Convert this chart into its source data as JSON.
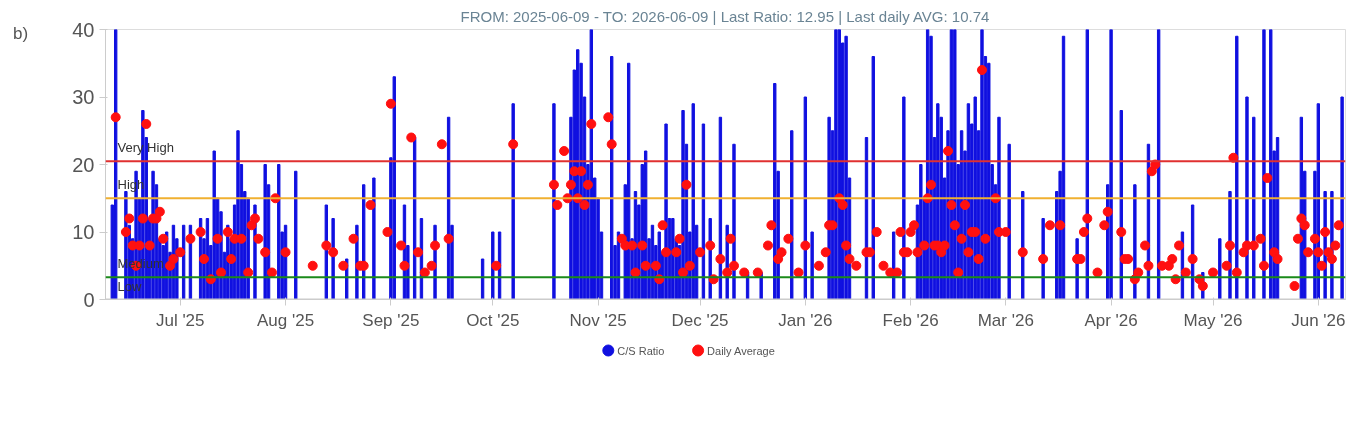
{
  "chart_data": {
    "type": "bar",
    "title": "FROM: 2025-06-09 - TO: 2026-06-09 | Last Ratio: 12.95 | Last daily AVG: 10.74",
    "annotations": [
      "b)"
    ],
    "xlim": [
      "2025-06-09",
      "2026-06-09"
    ],
    "xticks": [
      {
        "value": "2025-07-01",
        "label": "Jul '25"
      },
      {
        "value": "2025-08-01",
        "label": "Aug '25"
      },
      {
        "value": "2025-09-01",
        "label": "Sep '25"
      },
      {
        "value": "2025-10-01",
        "label": "Oct '25"
      },
      {
        "value": "2025-11-01",
        "label": "Nov '25"
      },
      {
        "value": "2025-12-01",
        "label": "Dec '25"
      },
      {
        "value": "2026-01-01",
        "label": "Jan '26"
      },
      {
        "value": "2026-02-01",
        "label": "Feb '26"
      },
      {
        "value": "2026-03-01",
        "label": "Mar '26"
      },
      {
        "value": "2026-04-01",
        "label": "Apr '26"
      },
      {
        "value": "2026-05-01",
        "label": "May '26"
      },
      {
        "value": "2026-06-01",
        "label": "Jun '26"
      }
    ],
    "ylim": [
      0,
      40
    ],
    "yticks": [
      0,
      10,
      20,
      30,
      40
    ],
    "grid": false,
    "legend": "bottom",
    "ref_lines": [
      {
        "axis": "y",
        "value": 20.5,
        "label": "Very High",
        "color": "#e03030"
      },
      {
        "axis": "y",
        "value": 15,
        "label": "High",
        "color": "#f0b030"
      },
      {
        "axis": "y",
        "value": 3.3,
        "label": "Medium",
        "color": "#1a8a1a"
      },
      {
        "axis": "y",
        "value": 0,
        "label": "Low",
        "color": "#cccccc"
      }
    ],
    "series": [
      {
        "name": "C/S Ratio",
        "color": "#1010e0",
        "x": [
          "2025-06-11",
          "2025-06-12",
          "2025-06-15",
          "2025-06-16",
          "2025-06-17",
          "2025-06-18",
          "2025-06-19",
          "2025-06-20",
          "2025-06-21",
          "2025-06-22",
          "2025-06-23",
          "2025-06-24",
          "2025-06-25",
          "2025-06-26",
          "2025-06-27",
          "2025-06-28",
          "2025-06-29",
          "2025-06-30",
          "2025-07-02",
          "2025-07-04",
          "2025-07-07",
          "2025-07-08",
          "2025-07-09",
          "2025-07-10",
          "2025-07-11",
          "2025-07-12",
          "2025-07-13",
          "2025-07-14",
          "2025-07-15",
          "2025-07-16",
          "2025-07-17",
          "2025-07-18",
          "2025-07-19",
          "2025-07-20",
          "2025-07-21",
          "2025-07-23",
          "2025-07-26",
          "2025-07-27",
          "2025-07-30",
          "2025-07-31",
          "2025-08-01",
          "2025-08-04",
          "2025-08-13",
          "2025-08-15",
          "2025-08-19",
          "2025-08-22",
          "2025-08-24",
          "2025-08-27",
          "2025-09-01",
          "2025-09-02",
          "2025-09-05",
          "2025-09-06",
          "2025-09-08",
          "2025-09-10",
          "2025-09-14",
          "2025-09-18",
          "2025-09-19",
          "2025-09-28",
          "2025-10-01",
          "2025-10-03",
          "2025-10-07",
          "2025-10-19",
          "2025-10-24",
          "2025-10-25",
          "2025-10-26",
          "2025-10-27",
          "2025-10-28",
          "2025-10-29",
          "2025-10-30",
          "2025-10-31",
          "2025-11-01",
          "2025-11-02",
          "2025-11-05",
          "2025-11-06",
          "2025-11-07",
          "2025-11-09",
          "2025-11-10",
          "2025-11-11",
          "2025-11-12",
          "2025-11-13",
          "2025-11-14",
          "2025-11-15",
          "2025-11-16",
          "2025-11-17",
          "2025-11-18",
          "2025-11-19",
          "2025-11-20",
          "2025-11-21",
          "2025-11-22",
          "2025-11-23",
          "2025-11-24",
          "2025-11-25",
          "2025-11-26",
          "2025-11-27",
          "2025-11-28",
          "2025-11-29",
          "2025-11-30",
          "2025-12-02",
          "2025-12-04",
          "2025-12-07",
          "2025-12-09",
          "2025-12-11",
          "2025-12-15",
          "2025-12-19",
          "2025-12-23",
          "2025-12-24",
          "2025-12-28",
          "2026-01-01",
          "2026-01-03",
          "2026-01-08",
          "2026-01-09",
          "2026-01-10",
          "2026-01-11",
          "2026-01-12",
          "2026-01-13",
          "2026-01-14",
          "2026-01-19",
          "2026-01-21",
          "2026-01-27",
          "2026-01-30",
          "2026-02-03",
          "2026-02-04",
          "2026-02-05",
          "2026-02-06",
          "2026-02-07",
          "2026-02-08",
          "2026-02-09",
          "2026-02-10",
          "2026-02-11",
          "2026-02-12",
          "2026-02-13",
          "2026-02-14",
          "2026-02-15",
          "2026-02-16",
          "2026-02-17",
          "2026-02-18",
          "2026-02-19",
          "2026-02-20",
          "2026-02-21",
          "2026-02-22",
          "2026-02-23",
          "2026-02-24",
          "2026-02-25",
          "2026-02-26",
          "2026-02-27",
          "2026-03-02",
          "2026-03-06",
          "2026-03-12",
          "2026-03-16",
          "2026-03-17",
          "2026-03-18",
          "2026-03-22",
          "2026-03-25",
          "2026-03-31",
          "2026-04-01",
          "2026-04-04",
          "2026-04-08",
          "2026-04-12",
          "2026-04-15",
          "2026-04-22",
          "2026-04-25",
          "2026-04-28",
          "2026-05-03",
          "2026-05-06",
          "2026-05-08",
          "2026-05-11",
          "2026-05-13",
          "2026-05-16",
          "2026-05-18",
          "2026-05-19",
          "2026-05-20",
          "2026-05-27",
          "2026-05-28",
          "2026-05-31",
          "2026-06-01",
          "2026-06-03",
          "2026-06-05",
          "2026-06-08"
        ],
        "values": [
          14,
          40,
          16,
          11,
          9,
          19,
          15,
          28,
          24,
          12,
          19,
          17,
          9,
          8,
          10,
          7,
          11,
          9,
          11,
          11,
          12,
          9,
          12,
          8,
          22,
          15,
          13,
          7,
          11,
          9,
          14,
          25,
          20,
          16,
          15,
          14,
          20,
          17,
          20,
          10,
          11,
          19,
          14,
          12,
          6,
          11,
          17,
          18,
          21,
          33,
          14,
          8,
          24,
          12,
          11,
          27,
          11,
          6,
          10,
          10,
          29,
          29,
          27,
          34,
          37,
          35,
          30,
          20,
          40,
          18,
          15,
          10,
          36,
          8,
          10,
          17,
          35,
          9,
          16,
          14,
          20,
          22,
          9,
          11,
          8,
          10,
          7,
          26,
          12,
          12,
          9,
          8,
          28,
          23,
          10,
          29,
          11,
          26,
          12,
          27,
          11,
          23,
          4,
          4,
          32,
          19,
          25,
          30,
          10,
          27,
          25,
          40,
          40,
          38,
          39,
          18,
          24,
          36,
          10,
          30,
          14,
          20,
          15,
          40,
          39,
          24,
          29,
          27,
          18,
          25,
          40,
          40,
          20,
          25,
          22,
          29,
          26,
          30,
          25,
          40,
          36,
          35,
          20,
          17,
          27,
          23,
          16,
          12,
          16,
          19,
          39,
          9,
          40,
          17,
          40,
          28,
          17,
          23,
          40,
          10,
          14,
          4,
          9,
          16,
          39,
          30,
          27,
          40,
          40,
          22,
          24,
          27,
          19,
          19,
          29,
          16,
          16,
          30
        ]
      },
      {
        "name": "Daily Average",
        "type": "scatter",
        "color": "#ff1010",
        "marker": "circle",
        "x": [
          "2025-06-12",
          "2025-06-15",
          "2025-06-16",
          "2025-06-17",
          "2025-06-18",
          "2025-06-19",
          "2025-06-20",
          "2025-06-21",
          "2025-06-22",
          "2025-06-23",
          "2025-06-24",
          "2025-06-25",
          "2025-06-26",
          "2025-06-28",
          "2025-06-29",
          "2025-07-01",
          "2025-07-04",
          "2025-07-07",
          "2025-07-08",
          "2025-07-10",
          "2025-07-12",
          "2025-07-13",
          "2025-07-15",
          "2025-07-16",
          "2025-07-17",
          "2025-07-19",
          "2025-07-21",
          "2025-07-22",
          "2025-07-23",
          "2025-07-24",
          "2025-07-26",
          "2025-07-28",
          "2025-07-29",
          "2025-08-01",
          "2025-08-09",
          "2025-08-13",
          "2025-08-15",
          "2025-08-18",
          "2025-08-21",
          "2025-08-23",
          "2025-08-24",
          "2025-08-26",
          "2025-08-31",
          "2025-09-01",
          "2025-09-04",
          "2025-09-05",
          "2025-09-07",
          "2025-09-09",
          "2025-09-11",
          "2025-09-13",
          "2025-09-14",
          "2025-09-16",
          "2025-09-18",
          "2025-10-02",
          "2025-10-07",
          "2025-10-19",
          "2025-10-20",
          "2025-10-22",
          "2025-10-23",
          "2025-10-24",
          "2025-10-25",
          "2025-10-26",
          "2025-10-27",
          "2025-10-28",
          "2025-10-29",
          "2025-10-30",
          "2025-11-04",
          "2025-11-05",
          "2025-11-08",
          "2025-11-09",
          "2025-11-11",
          "2025-11-12",
          "2025-11-14",
          "2025-11-15",
          "2025-11-18",
          "2025-11-19",
          "2025-11-20",
          "2025-11-21",
          "2025-11-24",
          "2025-11-25",
          "2025-11-26",
          "2025-11-27",
          "2025-11-28",
          "2025-12-01",
          "2025-12-04",
          "2025-12-05",
          "2025-12-07",
          "2025-12-09",
          "2025-12-10",
          "2025-12-11",
          "2025-12-14",
          "2025-12-18",
          "2025-12-21",
          "2025-12-22",
          "2025-12-24",
          "2025-12-25",
          "2025-12-27",
          "2025-12-30",
          "2026-01-01",
          "2026-01-05",
          "2026-01-07",
          "2026-01-08",
          "2026-01-09",
          "2026-01-11",
          "2026-01-12",
          "2026-01-13",
          "2026-01-14",
          "2026-01-16",
          "2026-01-19",
          "2026-01-20",
          "2026-01-22",
          "2026-01-24",
          "2026-01-26",
          "2026-01-28",
          "2026-01-29",
          "2026-01-30",
          "2026-01-31",
          "2026-02-01",
          "2026-02-02",
          "2026-02-03",
          "2026-02-05",
          "2026-02-06",
          "2026-02-07",
          "2026-02-08",
          "2026-02-09",
          "2026-02-10",
          "2026-02-11",
          "2026-02-12",
          "2026-02-13",
          "2026-02-14",
          "2026-02-15",
          "2026-02-16",
          "2026-02-17",
          "2026-02-18",
          "2026-02-19",
          "2026-02-20",
          "2026-02-21",
          "2026-02-22",
          "2026-02-23",
          "2026-02-26",
          "2026-02-27",
          "2026-03-01",
          "2026-03-06",
          "2026-03-12",
          "2026-03-14",
          "2026-03-17",
          "2026-03-22",
          "2026-03-23",
          "2026-03-24",
          "2026-03-25",
          "2026-03-28",
          "2026-03-30",
          "2026-03-31",
          "2026-04-04",
          "2026-04-05",
          "2026-04-06",
          "2026-04-08",
          "2026-04-09",
          "2026-04-11",
          "2026-04-12",
          "2026-04-13",
          "2026-04-14",
          "2026-04-16",
          "2026-04-18",
          "2026-04-19",
          "2026-04-20",
          "2026-04-21",
          "2026-04-23",
          "2026-04-25",
          "2026-04-27",
          "2026-04-28",
          "2026-05-01",
          "2026-05-05",
          "2026-05-06",
          "2026-05-07",
          "2026-05-08",
          "2026-05-10",
          "2026-05-11",
          "2026-05-13",
          "2026-05-15",
          "2026-05-16",
          "2026-05-17",
          "2026-05-19",
          "2026-05-20",
          "2026-05-25",
          "2026-05-26",
          "2026-05-27",
          "2026-05-28",
          "2026-05-29",
          "2026-05-31",
          "2026-06-01",
          "2026-06-02",
          "2026-06-03",
          "2026-06-04",
          "2026-06-05",
          "2026-06-06",
          "2026-06-07"
        ],
        "values": [
          27,
          10,
          12,
          8,
          5,
          8,
          12,
          26,
          8,
          12,
          12,
          13,
          9,
          5,
          6,
          7,
          9,
          10,
          6,
          3,
          9,
          4,
          10,
          6,
          9,
          9,
          4,
          11,
          12,
          9,
          7,
          4,
          15,
          7,
          5,
          8,
          7,
          5,
          9,
          5,
          5,
          14,
          10,
          29,
          8,
          5,
          24,
          7,
          4,
          5,
          8,
          23,
          9,
          5,
          23,
          17,
          14,
          22,
          15,
          17,
          19,
          15,
          19,
          14,
          17,
          26,
          27,
          23,
          9,
          8,
          8,
          4,
          8,
          5,
          5,
          3,
          11,
          7,
          7,
          9,
          4,
          17,
          5,
          7,
          8,
          3,
          6,
          4,
          9,
          5,
          4,
          4,
          8,
          11,
          6,
          7,
          9,
          4,
          8,
          5,
          7,
          11,
          11,
          15,
          14,
          8,
          6,
          5,
          7,
          7,
          10,
          5,
          4,
          4,
          10,
          7,
          7,
          10,
          11,
          7,
          8,
          15,
          17,
          8,
          8,
          7,
          8,
          22,
          14,
          11,
          4,
          9,
          14,
          7,
          10,
          10,
          6,
          34,
          9,
          15,
          10,
          10,
          7,
          6,
          11,
          11,
          6,
          6,
          10,
          12,
          4,
          11,
          13,
          10,
          6,
          6,
          3,
          4,
          8,
          5,
          19,
          20,
          5,
          5,
          6,
          3,
          8,
          4,
          6,
          3,
          2,
          4,
          5,
          8,
          21,
          4,
          7,
          8,
          8,
          9,
          5,
          18,
          7,
          6,
          2,
          9,
          12,
          11,
          7,
          9,
          7,
          5,
          10,
          7,
          6,
          8,
          11
        ]
      }
    ]
  }
}
